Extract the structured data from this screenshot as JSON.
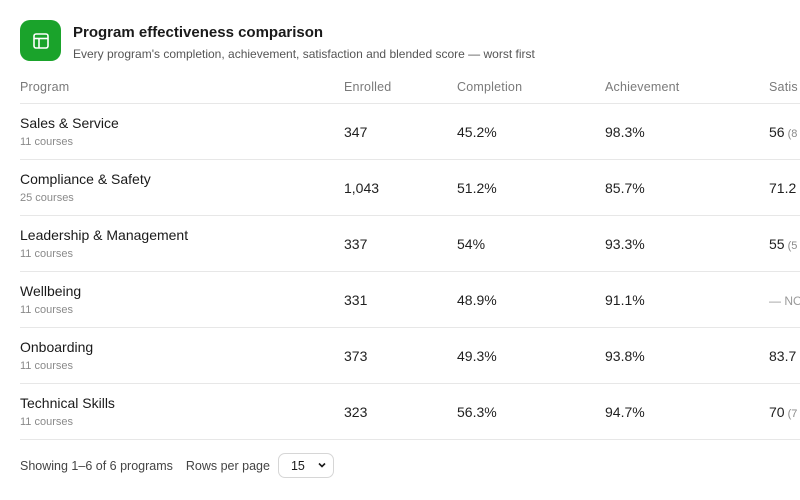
{
  "header": {
    "icon": "table-icon",
    "accent_color": "#1aa32b",
    "title": "Program effectiveness comparison",
    "subtitle": "Every program's completion, achievement, satisfaction and blended score — worst first"
  },
  "table": {
    "columns": [
      "Program",
      "Enrolled",
      "Completion",
      "Achievement",
      "Satis"
    ],
    "rows": [
      {
        "program": "Sales & Service",
        "courses": "11 courses",
        "enrolled": "347",
        "completion": "45.2%",
        "achievement": "98.3%",
        "satisfaction": "56",
        "satisfaction_sub": "(8"
      },
      {
        "program": "Compliance & Safety",
        "courses": "25 courses",
        "enrolled": "1,043",
        "completion": "51.2%",
        "achievement": "85.7%",
        "satisfaction": "71.2",
        "satisfaction_sub": ""
      },
      {
        "program": "Leadership & Management",
        "courses": "11 courses",
        "enrolled": "337",
        "completion": "54%",
        "achievement": "93.3%",
        "satisfaction": "55",
        "satisfaction_sub": "(5"
      },
      {
        "program": "Wellbeing",
        "courses": "11 courses",
        "enrolled": "331",
        "completion": "48.9%",
        "achievement": "91.1%",
        "satisfaction": "— NO",
        "satisfaction_sub": ""
      },
      {
        "program": "Onboarding",
        "courses": "11 courses",
        "enrolled": "373",
        "completion": "49.3%",
        "achievement": "93.8%",
        "satisfaction": "83.7",
        "satisfaction_sub": ""
      },
      {
        "program": "Technical Skills",
        "courses": "11 courses",
        "enrolled": "323",
        "completion": "56.3%",
        "achievement": "94.7%",
        "satisfaction": "70",
        "satisfaction_sub": "(7"
      }
    ]
  },
  "footer": {
    "showing": "Showing 1–6 of 6 programs",
    "rows_per_page_label": "Rows per page",
    "rows_per_page_value": "15"
  }
}
